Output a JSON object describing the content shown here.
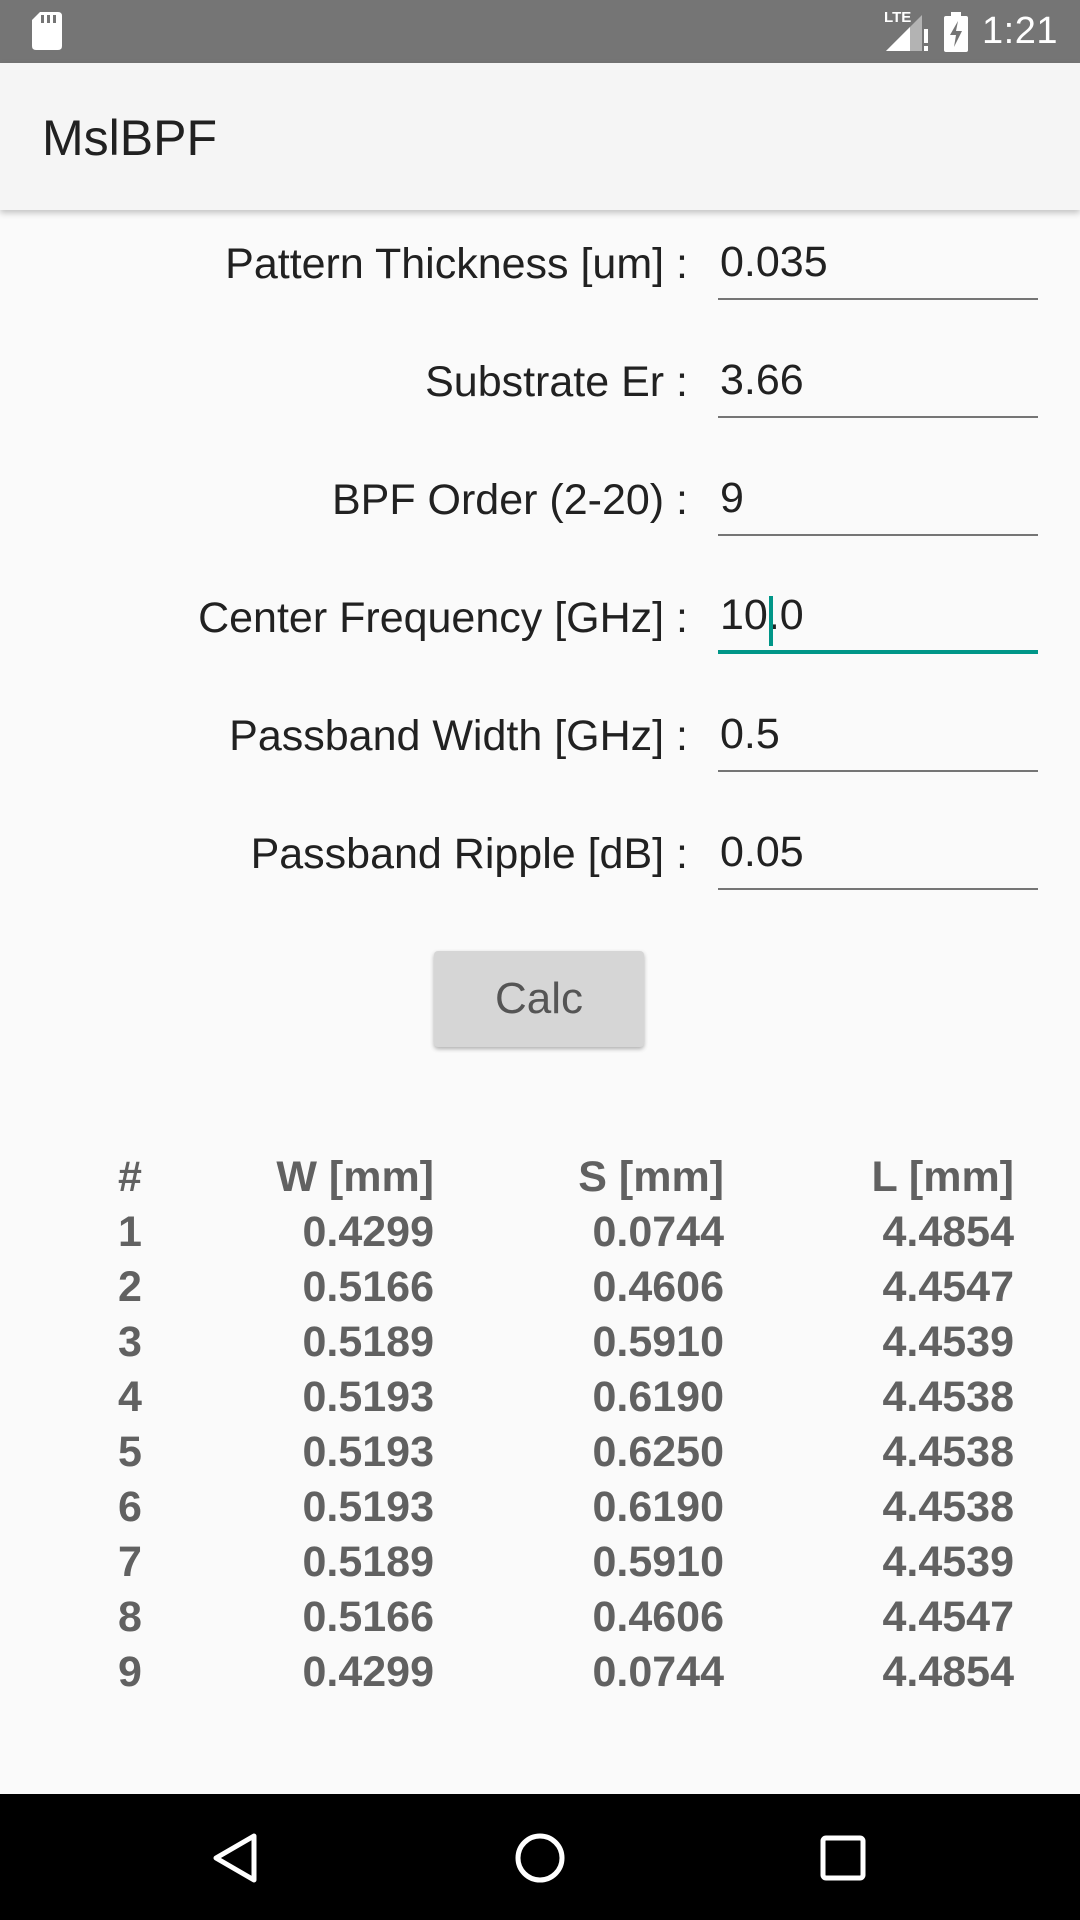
{
  "status_bar": {
    "network_label": "LTE",
    "time": "1:21",
    "icons": [
      "sd-card-icon",
      "signal-icon",
      "battery-charging-icon"
    ]
  },
  "app_bar": {
    "title": "MslBPF"
  },
  "form": {
    "fields": [
      {
        "label": "Pattern Thickness [um] :",
        "value": "0.035"
      },
      {
        "label": "Substrate Er :",
        "value": "3.66"
      },
      {
        "label": "BPF Order (2-20) :",
        "value": "9"
      },
      {
        "label": "Center Frequency [GHz] :",
        "value": "10.0"
      },
      {
        "label": "Passband Width [GHz] :",
        "value": "0.5"
      },
      {
        "label": "Passband Ripple [dB] :",
        "value": "0.05"
      }
    ],
    "focused_field": "Center Frequency [GHz] :"
  },
  "calc_button": {
    "label": "Calc"
  },
  "results": {
    "headers": [
      "#",
      "W [mm]",
      "S [mm]",
      "L [mm]"
    ],
    "rows": [
      [
        "1",
        "0.4299",
        "0.0744",
        "4.4854"
      ],
      [
        "2",
        "0.5166",
        "0.4606",
        "4.4547"
      ],
      [
        "3",
        "0.5189",
        "0.5910",
        "4.4539"
      ],
      [
        "4",
        "0.5193",
        "0.6190",
        "4.4538"
      ],
      [
        "5",
        "0.5193",
        "0.6250",
        "4.4538"
      ],
      [
        "6",
        "0.5193",
        "0.6190",
        "4.4538"
      ],
      [
        "7",
        "0.5189",
        "0.5910",
        "4.4539"
      ],
      [
        "8",
        "0.5166",
        "0.4606",
        "4.4547"
      ],
      [
        "9",
        "0.4299",
        "0.0744",
        "4.4854"
      ]
    ]
  },
  "nav_bar": {
    "buttons": [
      "back-icon",
      "home-icon",
      "recents-icon"
    ]
  },
  "colors": {
    "accent": "#009688",
    "status_bar": "#757575",
    "app_bar": "#f5f5f5"
  }
}
